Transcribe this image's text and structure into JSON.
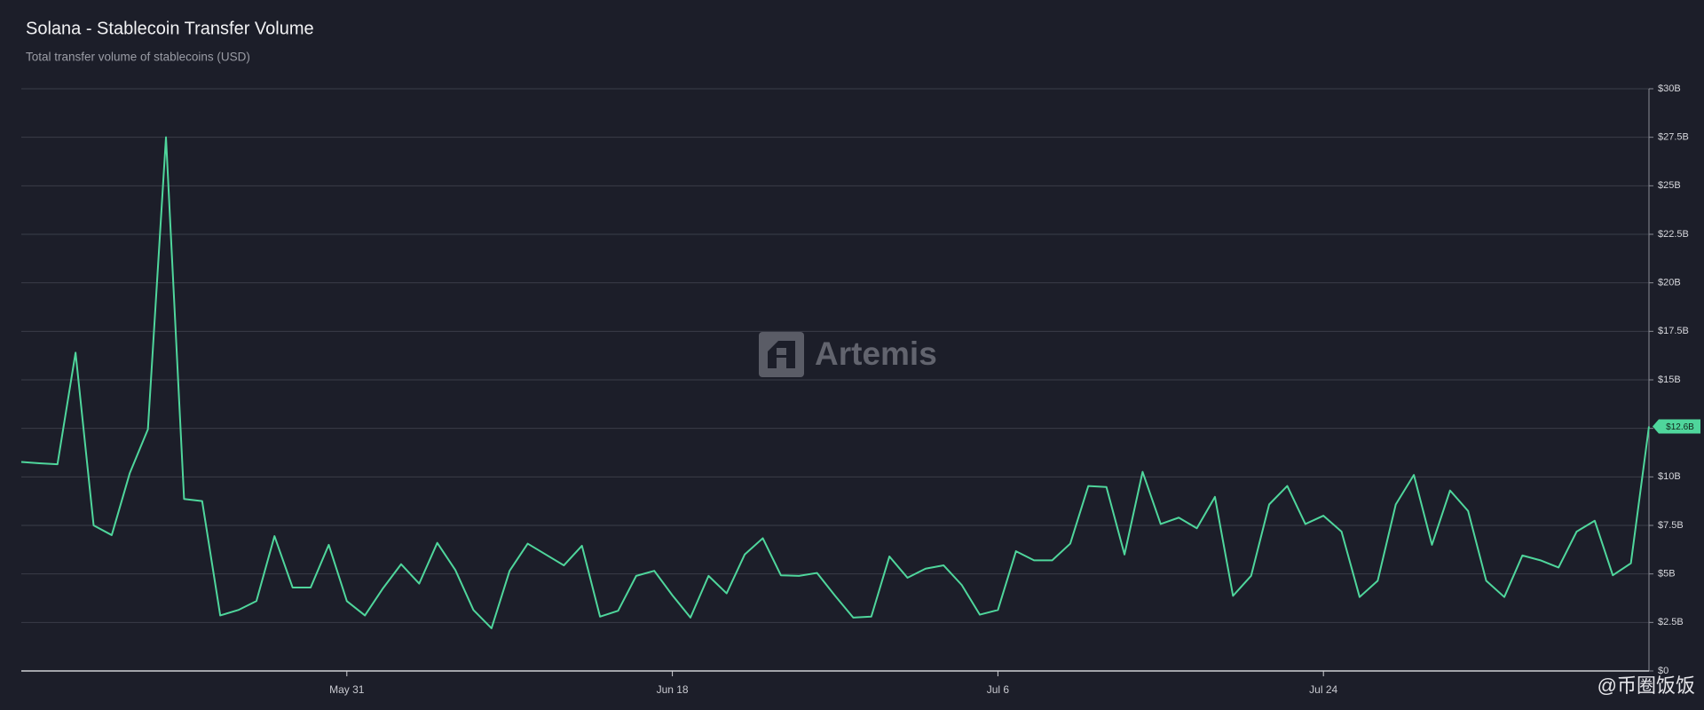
{
  "chart_data": {
    "type": "line",
    "title": "Solana - Stablecoin Transfer Volume",
    "subtitle": "Total transfer volume of stablecoins (USD)",
    "watermark": "Artemis",
    "overlay_watermark": "@币圈饭饭",
    "categories": [
      null,
      null,
      null,
      null,
      null,
      null,
      null,
      null,
      null,
      null,
      null,
      null,
      null,
      null,
      null,
      null,
      null,
      null,
      "May 31",
      null,
      null,
      null,
      null,
      null,
      null,
      null,
      null,
      null,
      null,
      null,
      null,
      null,
      null,
      null,
      null,
      null,
      "Jun 18",
      null,
      null,
      null,
      null,
      null,
      null,
      null,
      null,
      null,
      null,
      null,
      null,
      null,
      null,
      null,
      null,
      null,
      "Jul 6",
      null,
      null,
      null,
      null,
      null,
      null,
      null,
      null,
      null,
      null,
      null,
      null,
      null,
      null,
      null,
      null,
      null,
      "Jul 24",
      null,
      null,
      null,
      null,
      null,
      null,
      null,
      null,
      null,
      null,
      null,
      null,
      null,
      null,
      null,
      null,
      null,
      null
    ],
    "series": [
      {
        "name": "Stablecoin Transfer Volume",
        "color": "#4fd69c",
        "values": [
          10.77,
          10.7,
          10.65,
          16.4,
          7.5,
          7.0,
          10.2,
          12.45,
          27.5,
          8.86,
          8.75,
          2.86,
          3.14,
          3.6,
          6.95,
          4.3,
          4.3,
          6.5,
          3.6,
          2.86,
          4.26,
          5.5,
          4.5,
          6.6,
          5.2,
          3.14,
          2.2,
          5.16,
          6.56,
          6.0,
          5.44,
          6.45,
          2.8,
          3.1,
          4.9,
          5.16,
          3.9,
          2.75,
          4.9,
          4.0,
          6.0,
          6.84,
          4.93,
          4.9,
          5.05,
          3.87,
          2.75,
          2.8,
          5.9,
          4.8,
          5.27,
          5.44,
          4.43,
          2.9,
          3.14,
          6.17,
          5.7,
          5.7,
          6.56,
          9.53,
          9.48,
          6.0,
          10.26,
          7.57,
          7.9,
          7.35,
          8.97,
          3.87,
          4.9,
          8.58,
          9.53,
          7.57,
          8.0,
          7.18,
          3.81,
          4.65,
          8.58,
          10.1,
          6.5,
          9.3,
          8.24,
          4.65,
          3.81,
          5.95,
          5.7,
          5.33,
          7.18,
          7.74,
          4.93,
          5.55,
          12.6
        ],
        "value_labels": [
          null,
          null,
          null,
          null,
          null,
          null,
          null,
          null,
          null,
          null,
          null,
          null,
          null,
          null,
          null,
          null,
          null,
          null,
          null,
          null,
          null,
          null,
          null,
          null,
          null,
          null,
          null,
          null,
          null,
          null,
          null,
          null,
          null,
          null,
          null,
          null,
          null,
          null,
          null,
          null,
          null,
          null,
          null,
          null,
          null,
          null,
          null,
          null,
          null,
          null,
          null,
          null,
          null,
          null,
          null,
          null,
          null,
          null,
          null,
          null,
          null,
          null,
          null,
          null,
          null,
          null,
          null,
          null,
          null,
          null,
          null,
          null,
          null,
          null,
          null,
          null,
          null,
          null,
          null,
          null,
          null,
          null,
          null,
          null,
          null,
          null,
          null,
          null,
          null,
          null,
          "$12.6B"
        ]
      }
    ],
    "ylim": [
      0,
      30
    ],
    "yticks": [
      {
        "value": 0,
        "label": "$0"
      },
      {
        "value": 2.5,
        "label": "$2.5B"
      },
      {
        "value": 5,
        "label": "$5B"
      },
      {
        "value": 7.5,
        "label": "$7.5B"
      },
      {
        "value": 10,
        "label": "$10B"
      },
      {
        "value": 12.5,
        "label": "$12.5B"
      },
      {
        "value": 15,
        "label": "$15B"
      },
      {
        "value": 17.5,
        "label": "$17.5B"
      },
      {
        "value": 20,
        "label": "$20B"
      },
      {
        "value": 22.5,
        "label": "$22.5B"
      },
      {
        "value": 25,
        "label": "$25B"
      },
      {
        "value": 27.5,
        "label": "$27.5B"
      },
      {
        "value": 30,
        "label": "$30B"
      }
    ],
    "grid": true,
    "y_axis_side": "right"
  }
}
